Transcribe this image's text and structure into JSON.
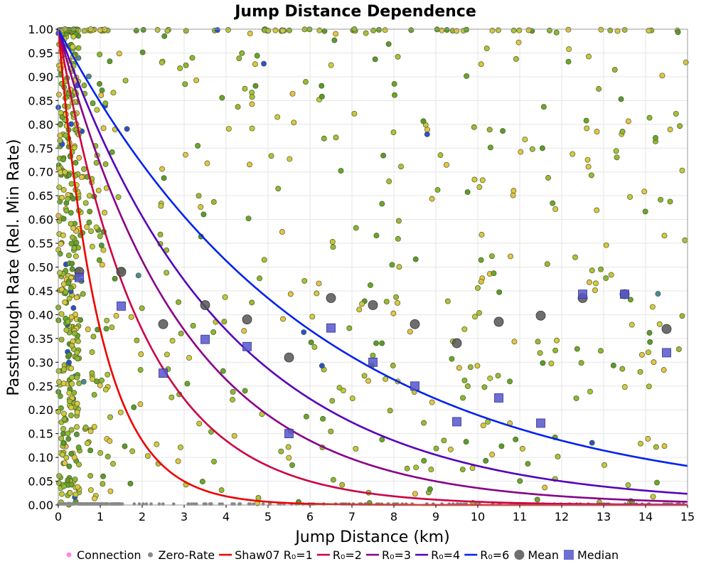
{
  "chart_data": {
    "type": "scatter",
    "title": "Jump Distance Dependence",
    "xlabel": "Jump Distance (km)",
    "ylabel": "Passthrough Rate (Rel. Min Rate)",
    "xlim": [
      0,
      15
    ],
    "ylim": [
      0,
      1
    ],
    "x_ticks": [
      0,
      1,
      2,
      3,
      4,
      5,
      6,
      7,
      8,
      9,
      10,
      11,
      12,
      13,
      14,
      15
    ],
    "x_tick_labels": [
      "0",
      "1",
      "2",
      "3",
      "4",
      "5",
      "6",
      "7",
      "8",
      "9",
      "10",
      "11",
      "12",
      "13",
      "14",
      "15"
    ],
    "y_ticks": [
      0,
      0.05,
      0.1,
      0.15,
      0.2,
      0.25,
      0.3,
      0.35,
      0.4,
      0.45,
      0.5,
      0.55,
      0.6,
      0.65,
      0.7,
      0.75,
      0.8,
      0.85,
      0.9,
      0.95,
      1.0
    ],
    "y_tick_labels": [
      "0.00",
      "0.05",
      "0.10",
      "0.15",
      "0.20",
      "0.25",
      "0.30",
      "0.35",
      "0.40",
      "0.45",
      "0.50",
      "0.55",
      "0.60",
      "0.65",
      "0.70",
      "0.75",
      "0.80",
      "0.85",
      "0.90",
      "0.95",
      "1.00"
    ],
    "grid": true,
    "legend_position": "bottom",
    "legend": [
      {
        "label": "Connection",
        "kind": "dot",
        "color": "#ff88dd"
      },
      {
        "label": "Zero-Rate",
        "kind": "dot",
        "color": "#888888"
      },
      {
        "label": "Shaw07 R₀=1",
        "kind": "line",
        "color": "#ee0000"
      },
      {
        "label": "R₀=2",
        "kind": "line",
        "color": "#cc0044"
      },
      {
        "label": "R₀=3",
        "kind": "line",
        "color": "#880088"
      },
      {
        "label": "R₀=4",
        "kind": "line",
        "color": "#5500bb"
      },
      {
        "label": "R₀=6",
        "kind": "line",
        "color": "#0022ee"
      },
      {
        "label": "Mean",
        "kind": "circle",
        "color": "#555555"
      },
      {
        "label": "Median",
        "kind": "square",
        "color": "#5555cc"
      }
    ],
    "curves": [
      {
        "name": "Shaw07 R₀=1",
        "color": "#ee0000",
        "r0": 1
      },
      {
        "name": "R₀=2",
        "color": "#cc0044",
        "r0": 2
      },
      {
        "name": "R₀=3",
        "color": "#880088",
        "r0": 3
      },
      {
        "name": "R₀=4",
        "color": "#5500bb",
        "r0": 4
      },
      {
        "name": "R₀=6",
        "color": "#0022ee",
        "r0": 6
      }
    ],
    "mean": [
      [
        0.5,
        0.49
      ],
      [
        1.5,
        0.49
      ],
      [
        2.5,
        0.38
      ],
      [
        3.5,
        0.42
      ],
      [
        4.5,
        0.39
      ],
      [
        5.5,
        0.31
      ],
      [
        6.5,
        0.435
      ],
      [
        7.5,
        0.42
      ],
      [
        8.5,
        0.38
      ],
      [
        9.5,
        0.34
      ],
      [
        10.5,
        0.385
      ],
      [
        11.5,
        0.398
      ],
      [
        12.5,
        0.435
      ],
      [
        13.5,
        0.443
      ],
      [
        14.5,
        0.37
      ]
    ],
    "median": [
      [
        0.5,
        0.478
      ],
      [
        1.5,
        0.418
      ],
      [
        2.5,
        0.277
      ],
      [
        3.5,
        0.348
      ],
      [
        4.5,
        0.333
      ],
      [
        5.5,
        0.15
      ],
      [
        6.5,
        0.372
      ],
      [
        7.5,
        0.3
      ],
      [
        8.5,
        0.25
      ],
      [
        9.5,
        0.175
      ],
      [
        10.5,
        0.225
      ],
      [
        11.5,
        0.172
      ],
      [
        12.5,
        0.443
      ],
      [
        13.5,
        0.443
      ],
      [
        14.5,
        0.32
      ]
    ],
    "connections_scatter": {
      "description": "approx. 900 connection points, colours green to yellow, dense near x<1, uniform elsewhere; grey zero-rate dots along y=0",
      "dense_region_x_max": 0.5,
      "count": 900
    }
  }
}
